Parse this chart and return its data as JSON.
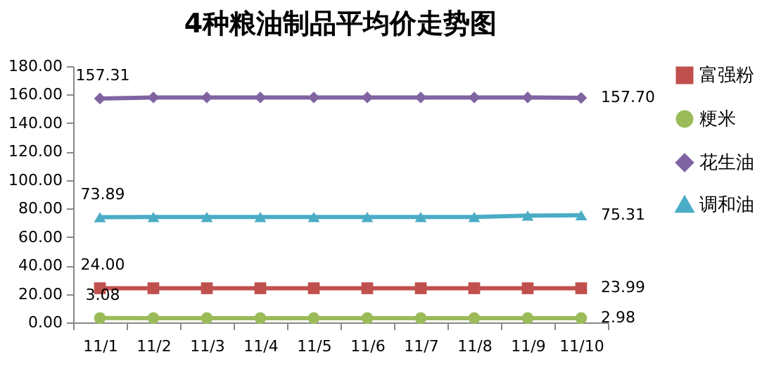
{
  "chart_data": {
    "type": "line",
    "title": "4种粮油制品平均价走势图",
    "categories": [
      "11/1",
      "11/2",
      "11/3",
      "11/4",
      "11/5",
      "11/6",
      "11/7",
      "11/8",
      "11/9",
      "11/10"
    ],
    "ylim": [
      0,
      180
    ],
    "yticks": [
      {
        "value": 0,
        "label": "0.00"
      },
      {
        "value": 20,
        "label": "20.00"
      },
      {
        "value": 40,
        "label": "40.00"
      },
      {
        "value": 60,
        "label": "60.00"
      },
      {
        "value": 80,
        "label": "80.00"
      },
      {
        "value": 100,
        "label": "100.00"
      },
      {
        "value": 120,
        "label": "120.00"
      },
      {
        "value": 140,
        "label": "140.00"
      },
      {
        "value": 160,
        "label": "160.00"
      },
      {
        "value": 180,
        "label": "180.00"
      }
    ],
    "legend": "right",
    "grid": false,
    "series": [
      {
        "name": "富强粉",
        "color": "#c0504d",
        "marker": "square",
        "values": [
          24.0,
          24,
          24,
          24,
          24,
          24,
          24,
          24,
          24,
          23.99
        ],
        "value_labels": [
          "24.00",
          null,
          null,
          null,
          null,
          null,
          null,
          null,
          null,
          "23.99"
        ]
      },
      {
        "name": "粳米",
        "color": "#9bbb59",
        "marker": "circle",
        "values": [
          3.08,
          3,
          3,
          3,
          3,
          3,
          3,
          3,
          3,
          2.98
        ],
        "value_labels": [
          "3.08",
          null,
          null,
          null,
          null,
          null,
          null,
          null,
          null,
          "2.98"
        ]
      },
      {
        "name": "花生油",
        "color": "#8064a2",
        "marker": "diamond",
        "values": [
          157.31,
          158,
          158,
          158,
          158,
          158,
          158,
          158,
          158,
          157.7
        ],
        "value_labels": [
          "157.31",
          null,
          null,
          null,
          null,
          null,
          null,
          null,
          null,
          "157.70"
        ]
      },
      {
        "name": "调和油",
        "color": "#4bacc6",
        "marker": "triangle",
        "values": [
          73.89,
          74,
          74,
          74,
          74,
          74,
          74,
          74,
          75,
          75.31
        ],
        "value_labels": [
          "73.89",
          null,
          null,
          null,
          null,
          null,
          null,
          null,
          null,
          "75.31"
        ]
      }
    ]
  }
}
